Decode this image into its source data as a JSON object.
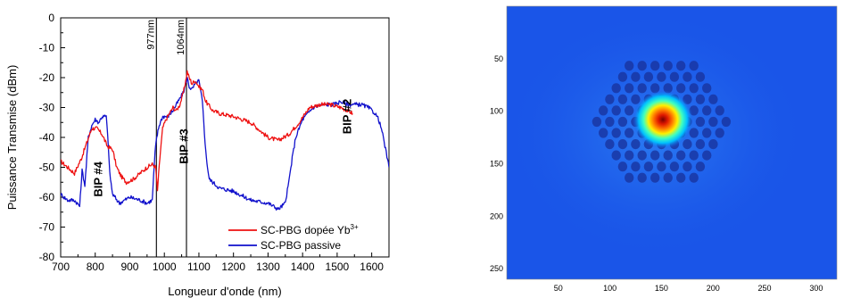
{
  "chart_data": [
    {
      "type": "line",
      "title": "",
      "xlabel": "Longueur d'onde (nm)",
      "ylabel": "Puissance Transmise (dBm)",
      "xlim": [
        700,
        1650
      ],
      "ylim": [
        -80,
        0
      ],
      "xticks": [
        700,
        800,
        900,
        1000,
        1100,
        1200,
        1300,
        1400,
        1500,
        1600
      ],
      "yticks": [
        0,
        -10,
        -20,
        -30,
        -40,
        -50,
        -60,
        -70,
        -80
      ],
      "vlines": [
        {
          "x": 977,
          "label": "977nm"
        },
        {
          "x": 1064,
          "label": "1064nm"
        }
      ],
      "annotations": [
        {
          "text": "BIP #4",
          "x": 820,
          "y": -54
        },
        {
          "text": "BIP #3",
          "x": 1068,
          "y": -43
        },
        {
          "text": "BIP #2",
          "x": 1540,
          "y": -33
        }
      ],
      "legend": {
        "position": "bottom-right",
        "entries": [
          {
            "label": "SC-PBG dopée Yb",
            "superscript": "3+",
            "color": "#ee1111"
          },
          {
            "label": "SC-PBG passive",
            "superscript": "",
            "color": "#1111cc"
          }
        ]
      },
      "series": [
        {
          "name": "SC-PBG dopée Yb3+",
          "color": "#ee1111",
          "x": [
            700,
            720,
            740,
            760,
            775,
            790,
            805,
            820,
            835,
            850,
            862,
            875,
            890,
            910,
            930,
            950,
            965,
            975,
            980,
            987,
            995,
            1005,
            1015,
            1025,
            1035,
            1045,
            1055,
            1062,
            1066,
            1072,
            1080,
            1090,
            1100,
            1110,
            1120,
            1140,
            1160,
            1200,
            1250,
            1300,
            1330,
            1360,
            1390,
            1420,
            1450,
            1480,
            1510,
            1530,
            1545
          ],
          "y": [
            -48,
            -50,
            -52,
            -47,
            -42,
            -37,
            -37,
            -39,
            -43,
            -44,
            -50,
            -53,
            -55,
            -54,
            -52,
            -50,
            -49,
            -50,
            -58,
            -47,
            -37,
            -34,
            -32,
            -30,
            -31,
            -29,
            -25,
            -21,
            -18,
            -20,
            -22,
            -21,
            -23,
            -24,
            -28,
            -31,
            -32,
            -33,
            -35,
            -40,
            -41,
            -39,
            -35,
            -30,
            -29,
            -29,
            -30,
            -31,
            -32
          ]
        },
        {
          "name": "SC-PBG passive",
          "color": "#1111cc",
          "x": [
            700,
            720,
            740,
            755,
            762,
            770,
            780,
            790,
            800,
            810,
            820,
            832,
            838,
            842,
            850,
            870,
            900,
            930,
            950,
            965,
            973,
            978,
            985,
            995,
            1010,
            1025,
            1040,
            1050,
            1055,
            1062,
            1066,
            1072,
            1080,
            1090,
            1100,
            1110,
            1120,
            1125,
            1130,
            1140,
            1160,
            1200,
            1250,
            1300,
            1330,
            1350,
            1360,
            1370,
            1380,
            1400,
            1430,
            1460,
            1490,
            1510,
            1530,
            1550,
            1570,
            1590,
            1610,
            1620,
            1630,
            1640,
            1650
          ],
          "y": [
            -59,
            -61,
            -61,
            -63,
            -51,
            -56,
            -40,
            -36,
            -34,
            -35,
            -33,
            -33,
            -43,
            -52,
            -59,
            -62,
            -60,
            -61,
            -62,
            -61,
            -45,
            -40,
            -36,
            -33,
            -33,
            -31,
            -28,
            -26,
            -25,
            -22,
            -20,
            -23,
            -24,
            -22,
            -21,
            -28,
            -45,
            -50,
            -54,
            -55,
            -57,
            -58,
            -61,
            -62,
            -64,
            -62,
            -55,
            -47,
            -40,
            -34,
            -30,
            -29,
            -29,
            -28,
            -29,
            -29,
            -29,
            -30,
            -32,
            -34,
            -38,
            -44,
            -50
          ]
        }
      ]
    },
    {
      "type": "heatmap",
      "title": "",
      "xlabel": "",
      "ylabel": "",
      "xlim": [
        0,
        320
      ],
      "ylim": [
        260,
        0
      ],
      "xticks": [
        50,
        100,
        150,
        200,
        250,
        300
      ],
      "yticks": [
        50,
        100,
        150,
        200,
        250
      ],
      "colormap": "jet",
      "background_color": "#1a55e8",
      "mode_center": {
        "x": 149,
        "y": 108
      },
      "hole_color": "#18309a",
      "lattice_center": {
        "x": 150,
        "y": 110
      }
    }
  ]
}
